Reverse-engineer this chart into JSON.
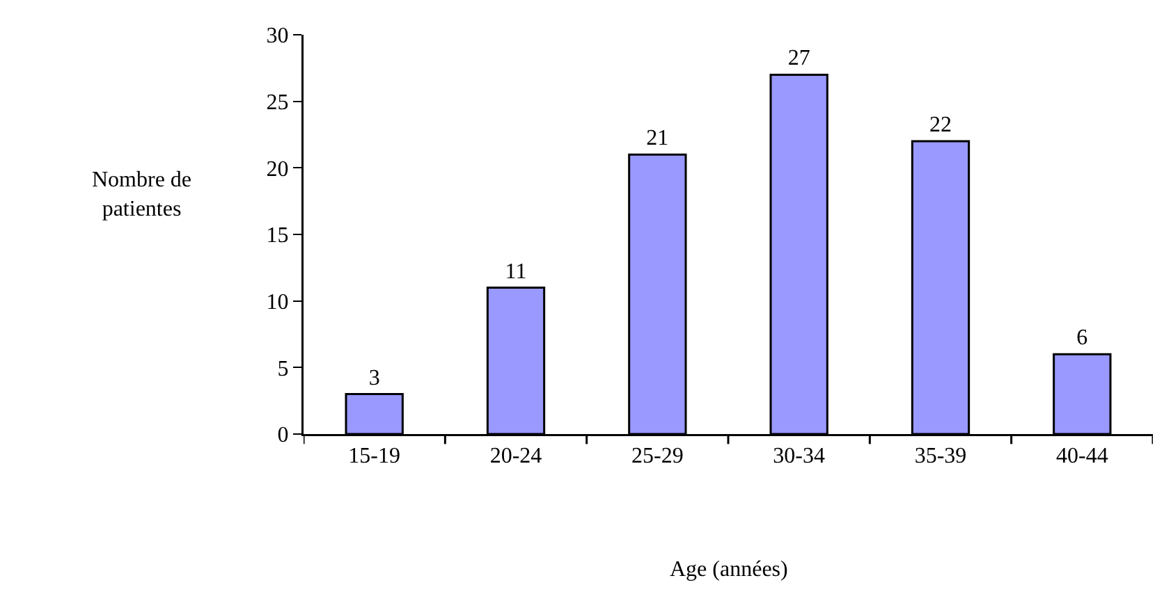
{
  "chart_data": {
    "type": "bar",
    "xlabel": "Age (années)",
    "ylabel": "Nombre de\npatientes",
    "categories": [
      "15-19",
      "20-24",
      "25-29",
      "30-34",
      "35-39",
      "40-44"
    ],
    "values": [
      3,
      11,
      21,
      27,
      22,
      6
    ],
    "color": "#9999ff",
    "ylim": [
      0,
      30
    ],
    "yticks": [
      0,
      5,
      10,
      15,
      20,
      25,
      30
    ],
    "grid": false,
    "legend": false,
    "data_labels": true
  }
}
